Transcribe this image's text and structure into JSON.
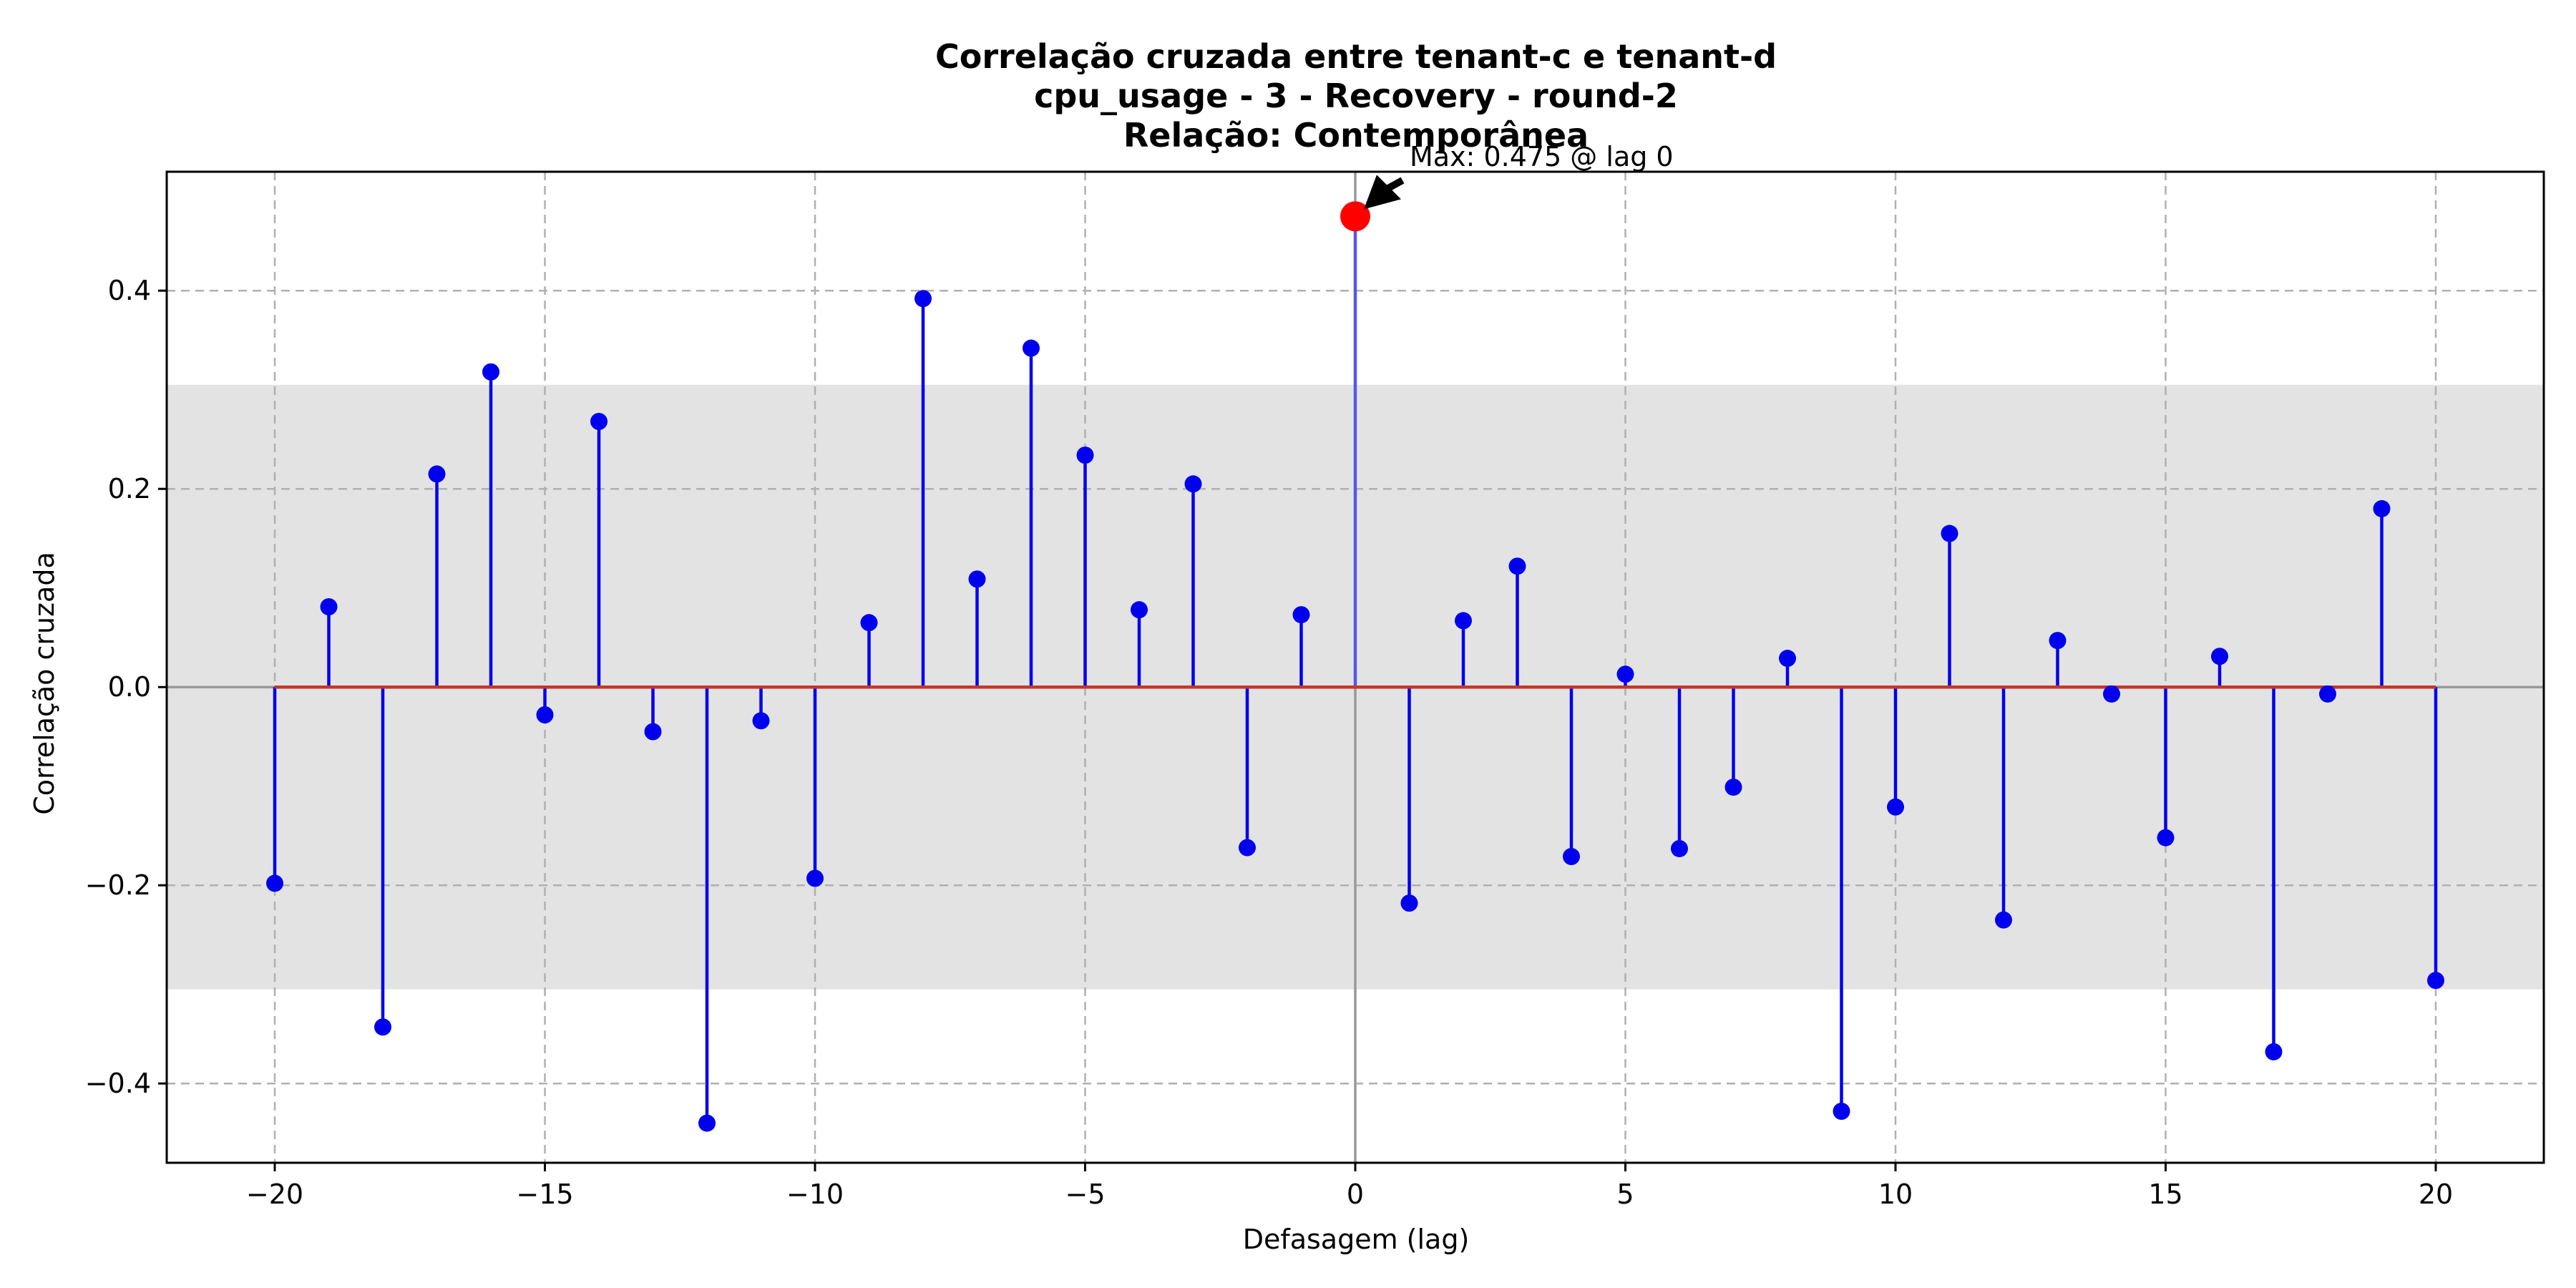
{
  "chart_data": {
    "type": "stem",
    "title_lines": [
      "Correlação cruzada entre tenant-c e tenant-d",
      "cpu_usage - 3 - Recovery - round-2",
      "Relação: Contemporânea"
    ],
    "xlabel": "Defasagem (lag)",
    "ylabel": "Correlação cruzada",
    "xlim": [
      -22,
      22
    ],
    "ylim": [
      -0.48,
      0.52
    ],
    "xticks": [
      -20,
      -15,
      -10,
      -5,
      0,
      5,
      10,
      15,
      20
    ],
    "xtick_labels": [
      "−20",
      "−15",
      "−10",
      "−5",
      "0",
      "5",
      "10",
      "15",
      "20"
    ],
    "yticks": [
      -0.4,
      -0.2,
      0.0,
      0.2,
      0.4
    ],
    "ytick_labels": [
      "−0.4",
      "−0.2",
      "0.0",
      "0.2",
      "0.4"
    ],
    "grid": true,
    "confidence_band": [
      -0.305,
      0.305
    ],
    "lags": [
      -20,
      -19,
      -18,
      -17,
      -16,
      -15,
      -14,
      -13,
      -12,
      -11,
      -10,
      -9,
      -8,
      -7,
      -6,
      -5,
      -4,
      -3,
      -2,
      -1,
      0,
      1,
      2,
      3,
      4,
      5,
      6,
      7,
      8,
      9,
      10,
      11,
      12,
      13,
      14,
      15,
      16,
      17,
      18,
      19,
      20
    ],
    "values": [
      -0.198,
      0.081,
      -0.343,
      0.215,
      0.318,
      -0.028,
      0.268,
      -0.045,
      -0.44,
      -0.034,
      -0.193,
      0.065,
      0.392,
      0.109,
      0.342,
      0.234,
      0.078,
      0.205,
      -0.162,
      0.073,
      0.475,
      -0.218,
      0.067,
      0.122,
      -0.171,
      0.013,
      -0.163,
      -0.101,
      0.029,
      -0.428,
      -0.121,
      0.155,
      -0.235,
      0.047,
      -0.007,
      -0.152,
      0.031,
      -0.368,
      -0.007,
      0.18,
      -0.296
    ],
    "max_point": {
      "lag": 0,
      "value": 0.475
    },
    "annotation": "Max: 0.475 @ lag 0",
    "colors": {
      "stem": "#0000ee",
      "marker": "#0000ee",
      "baseline": "#c0392b",
      "max_marker": "#ff0000",
      "band": "#e3e3e3",
      "zero_lines": "#999999"
    }
  }
}
